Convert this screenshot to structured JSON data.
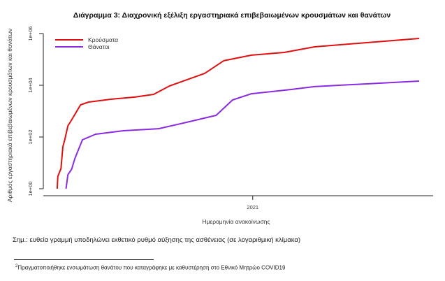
{
  "chart_data": {
    "type": "line",
    "title": "Διάγραμμα 3: Διαχρονική εξέλιξη εργαστηριακά επιβεβαιωμένων κρουσμάτων και θανάτων",
    "xlabel": "Ημερομηνία ανακοίνωσης",
    "ylabel": "Αριθμός εργαστηριακά επιβεβαιωμένων κρουσμάτων και θανάτων",
    "yscale": "log",
    "ylim": [
      1,
      1000000
    ],
    "x_unit": "days since first reported case",
    "xlim": [
      -22,
      596
    ],
    "x_ticks": [
      {
        "value": 310,
        "label": "2021"
      }
    ],
    "y_ticks": [
      {
        "value": 1,
        "label": "1e+00"
      },
      {
        "value": 100,
        "label": "1e+02"
      },
      {
        "value": 10000,
        "label": "1e+04"
      },
      {
        "value": 1000000,
        "label": "1e+06"
      }
    ],
    "legend_position": "top-left",
    "series": [
      {
        "name": "Κρούσματα",
        "color": "#e01010",
        "x": [
          0,
          1,
          6,
          9,
          12,
          17,
          22,
          37,
          50,
          86,
          123,
          153,
          178,
          234,
          264,
          308,
          360,
          408,
          574
        ],
        "values": [
          1,
          3,
          6,
          42,
          78,
          270,
          420,
          1750,
          2250,
          2900,
          3500,
          4450,
          9400,
          29000,
          89000,
          146000,
          186000,
          307000,
          646000
        ]
      },
      {
        "name": "Θάνατοι",
        "color": "#8a2be2",
        "x": [
          14,
          17,
          23,
          28,
          40,
          61,
          105,
          161,
          205,
          252,
          278,
          308,
          371,
          408,
          574
        ],
        "values": [
          1,
          3.5,
          5.7,
          14.5,
          78,
          128,
          175,
          210,
          370,
          690,
          2700,
          4700,
          6900,
          8900,
          14500
        ]
      }
    ]
  },
  "note": "Σημ.: ευθεία γραμμή υποδηλώνει εκθετικό ρυθμό αύξησης της ασθένειας (σε λογαριθμική κλίμακα)",
  "footnote": {
    "marker": "2",
    "text": "Πραγματοποιήθηκε ενσωμάτωση θανάτου που καταγράφηκε με καθυστέρηση στο Εθνικό Μητρώο COVID19"
  }
}
